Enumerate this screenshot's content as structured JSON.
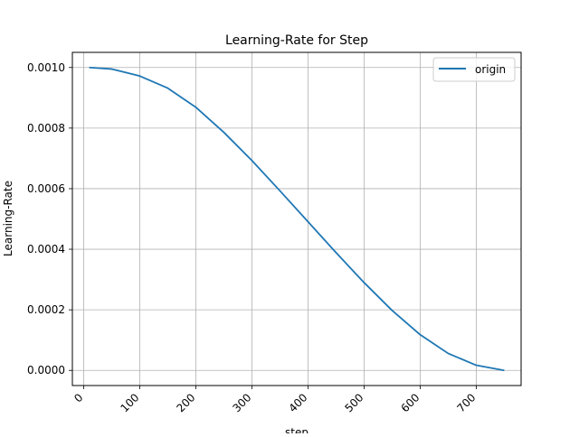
{
  "chart_data": {
    "type": "line",
    "title": "Learning-Rate for Step",
    "xlabel": "step",
    "ylabel": "Learning-Rate",
    "xlim": [
      -20,
      780
    ],
    "ylim": [
      -5e-05,
      0.00105
    ],
    "xticks": [
      0,
      100,
      200,
      300,
      400,
      500,
      600,
      700
    ],
    "xtick_labels": [
      "0",
      "100",
      "200",
      "300",
      "400",
      "500",
      "600",
      "700"
    ],
    "yticks": [
      0.0,
      0.0002,
      0.0004,
      0.0006,
      0.0008,
      0.001
    ],
    "ytick_labels": [
      "0.0000",
      "0.0002",
      "0.0004",
      "0.0006",
      "0.0008",
      "0.0010"
    ],
    "grid": true,
    "legend_position": "top-right",
    "series": [
      {
        "name": "origin",
        "color": "#1f77b4",
        "x": [
          10,
          50,
          100,
          150,
          200,
          250,
          300,
          350,
          400,
          450,
          500,
          550,
          600,
          650,
          700,
          750
        ],
        "y": [
          0.001,
          0.000995,
          0.000972,
          0.000932,
          0.000869,
          0.000786,
          0.000693,
          0.000593,
          0.000491,
          0.000389,
          0.00029,
          0.000198,
          0.000118,
          5.6e-05,
          1.7e-05,
          0.0
        ]
      }
    ]
  }
}
